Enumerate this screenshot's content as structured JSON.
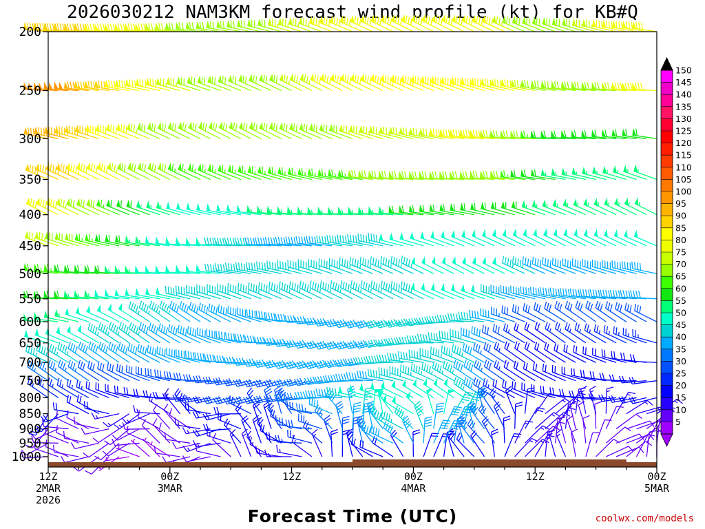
{
  "chart_data": {
    "type": "wind-barb-time-height",
    "title": "2026030212 NAM3KM forecast wind profile (kt) for KB#Q",
    "xlabel": "Forecast Time (UTC)",
    "ylabel": "",
    "credit": "coolwx.com/models",
    "y_axis": {
      "scale": "pressure (hPa), decreasing upward",
      "range": [
        1040,
        200
      ],
      "ticks": [
        "200",
        "250",
        "300",
        "350",
        "400",
        "450",
        "500",
        "550",
        "600",
        "650",
        "700",
        "750",
        "800",
        "850",
        "900",
        "950",
        "1000"
      ]
    },
    "x_axis": {
      "range_hours": [
        0,
        60
      ],
      "ticks": [
        {
          "hour": 0,
          "lines": [
            "12Z",
            "2MAR",
            "2026"
          ]
        },
        {
          "hour": 12,
          "lines": [
            "00Z",
            "3MAR"
          ]
        },
        {
          "hour": 24,
          "lines": [
            "12Z"
          ]
        },
        {
          "hour": 36,
          "lines": [
            "00Z",
            "4MAR"
          ]
        },
        {
          "hour": 48,
          "lines": [
            "12Z"
          ]
        },
        {
          "hour": 60,
          "lines": [
            "00Z",
            "5MAR"
          ]
        }
      ]
    },
    "colorbar": {
      "unit": "kt",
      "labels": [
        "150",
        "145",
        "140",
        "135",
        "130",
        "125",
        "120",
        "115",
        "110",
        "105",
        "100",
        "95",
        "90",
        "85",
        "80",
        "75",
        "70",
        "65",
        "60",
        "55",
        "50",
        "45",
        "40",
        "35",
        "30",
        "25",
        "20",
        "15",
        "10",
        "5"
      ],
      "colors": [
        "#ff00ff",
        "#f000c8",
        "#ff0096",
        "#ff1464",
        "#ff0032",
        "#ff0000",
        "#ff1e00",
        "#ff3c00",
        "#ff5a00",
        "#ff7800",
        "#ff9600",
        "#ffb400",
        "#ffd200",
        "#ffff00",
        "#f0ff00",
        "#c8ff00",
        "#96ff00",
        "#3cff00",
        "#14e614",
        "#00ff78",
        "#00ffc8",
        "#00d2d2",
        "#00aaff",
        "#0078ff",
        "#0050ff",
        "#0028ff",
        "#0000ff",
        "#2800ff",
        "#6400ff",
        "#a000ff"
      ]
    },
    "barb_time_step_hours": 1,
    "levels": [
      {
        "p": 1000,
        "speeds": [
          10,
          8,
          8,
          8,
          8,
          8,
          8,
          5,
          5,
          5,
          5,
          5,
          5,
          8,
          8,
          8,
          10,
          10,
          10,
          15,
          15,
          15,
          15,
          15,
          15,
          15,
          15,
          15,
          20,
          20,
          20,
          20,
          20,
          20,
          20,
          20,
          20,
          20,
          20,
          20,
          20,
          20,
          20,
          20,
          20,
          20,
          15,
          15,
          15,
          15,
          15,
          15,
          12,
          12,
          10,
          10,
          8,
          8,
          8,
          8,
          8
        ]
      },
      {
        "p": 950,
        "speeds": [
          10,
          10,
          10,
          10,
          10,
          10,
          8,
          8,
          8,
          8,
          8,
          8,
          8,
          10,
          10,
          10,
          15,
          15,
          15,
          18,
          18,
          18,
          20,
          22,
          22,
          25,
          25,
          25,
          25,
          30,
          32,
          35,
          35,
          38,
          40,
          40,
          40,
          40,
          38,
          38,
          35,
          35,
          35,
          30,
          25,
          20,
          15,
          15,
          12,
          12,
          12,
          12,
          10,
          10,
          10,
          10,
          10,
          10,
          10,
          10,
          10
        ]
      },
      {
        "p": 900,
        "speeds": [
          10,
          10,
          10,
          10,
          10,
          10,
          10,
          10,
          10,
          10,
          10,
          10,
          10,
          12,
          12,
          15,
          15,
          18,
          18,
          20,
          20,
          22,
          22,
          25,
          25,
          28,
          30,
          32,
          35,
          35,
          38,
          40,
          40,
          42,
          45,
          45,
          45,
          45,
          42,
          42,
          40,
          40,
          40,
          35,
          30,
          25,
          20,
          18,
          15,
          15,
          15,
          15,
          12,
          12,
          12,
          12,
          12,
          12,
          12,
          12,
          12
        ]
      },
      {
        "p": 850,
        "speeds": [
          20,
          20,
          20,
          20,
          20,
          18,
          18,
          15,
          15,
          15,
          15,
          15,
          15,
          15,
          18,
          18,
          20,
          20,
          22,
          22,
          25,
          25,
          28,
          30,
          30,
          32,
          32,
          35,
          38,
          40,
          42,
          45,
          48,
          50,
          50,
          50,
          50,
          50,
          48,
          48,
          45,
          45,
          40,
          35,
          30,
          25,
          20,
          18,
          15,
          15,
          15,
          15,
          15,
          15,
          15,
          15,
          15,
          15,
          15,
          15,
          15
        ]
      },
      {
        "p": 800,
        "speeds": [
          25,
          25,
          25,
          25,
          25,
          25,
          22,
          22,
          20,
          20,
          20,
          20,
          20,
          22,
          22,
          25,
          25,
          25,
          28,
          28,
          30,
          30,
          30,
          32,
          32,
          35,
          35,
          38,
          40,
          42,
          45,
          48,
          50,
          52,
          52,
          52,
          52,
          52,
          50,
          50,
          48,
          48,
          45,
          40,
          30,
          25,
          20,
          20,
          20,
          20,
          20,
          20,
          20,
          20,
          20,
          20,
          20,
          20,
          20,
          20,
          20
        ]
      },
      {
        "p": 750,
        "speeds": [
          35,
          35,
          35,
          35,
          35,
          32,
          32,
          30,
          30,
          30,
          30,
          30,
          30,
          30,
          30,
          30,
          30,
          30,
          30,
          32,
          32,
          32,
          32,
          32,
          32,
          35,
          35,
          35,
          38,
          38,
          40,
          40,
          42,
          42,
          45,
          45,
          45,
          45,
          45,
          45,
          45,
          45,
          42,
          40,
          35,
          30,
          25,
          22,
          20,
          20,
          20,
          20,
          20,
          20,
          20,
          20,
          20,
          20,
          20,
          20,
          20
        ]
      },
      {
        "p": 700,
        "speeds": [
          45,
          45,
          45,
          45,
          42,
          42,
          40,
          40,
          40,
          40,
          40,
          38,
          38,
          38,
          38,
          38,
          38,
          38,
          38,
          38,
          38,
          38,
          38,
          38,
          38,
          38,
          38,
          38,
          40,
          40,
          42,
          42,
          42,
          45,
          45,
          45,
          45,
          45,
          45,
          45,
          45,
          45,
          45,
          40,
          35,
          30,
          25,
          22,
          20,
          20,
          20,
          20,
          20,
          20,
          20,
          20,
          20,
          20,
          20,
          20,
          20
        ]
      },
      {
        "p": 650,
        "speeds": [
          50,
          50,
          50,
          50,
          48,
          48,
          45,
          45,
          45,
          45,
          45,
          42,
          42,
          42,
          42,
          42,
          40,
          40,
          40,
          40,
          40,
          40,
          40,
          40,
          40,
          40,
          40,
          40,
          40,
          40,
          42,
          42,
          42,
          42,
          45,
          45,
          45,
          45,
          45,
          45,
          45,
          45,
          45,
          42,
          38,
          32,
          28,
          25,
          22,
          22,
          22,
          25,
          25,
          25,
          25,
          25,
          25,
          25,
          25,
          25,
          25
        ]
      },
      {
        "p": 600,
        "speeds": [
          55,
          55,
          55,
          55,
          52,
          52,
          50,
          50,
          48,
          48,
          45,
          45,
          45,
          45,
          42,
          42,
          42,
          42,
          42,
          42,
          42,
          42,
          42,
          42,
          42,
          42,
          42,
          42,
          42,
          42,
          42,
          42,
          42,
          42,
          45,
          45,
          45,
          45,
          45,
          45,
          45,
          45,
          45,
          45,
          42,
          38,
          35,
          32,
          30,
          30,
          30,
          30,
          30,
          30,
          32,
          32,
          32,
          32,
          32,
          32,
          32
        ]
      },
      {
        "p": 550,
        "speeds": [
          60,
          60,
          60,
          58,
          55,
          55,
          55,
          52,
          50,
          50,
          50,
          48,
          48,
          48,
          45,
          45,
          45,
          45,
          45,
          45,
          45,
          45,
          45,
          45,
          45,
          45,
          45,
          45,
          45,
          45,
          45,
          45,
          45,
          45,
          45,
          45,
          45,
          45,
          48,
          48,
          48,
          48,
          48,
          48,
          48,
          45,
          42,
          40,
          38,
          38,
          38,
          38,
          38,
          38,
          38,
          38,
          38,
          38,
          38,
          38,
          38
        ]
      },
      {
        "p": 500,
        "speeds": [
          65,
          65,
          65,
          62,
          60,
          60,
          58,
          58,
          55,
          55,
          55,
          52,
          52,
          50,
          50,
          48,
          48,
          48,
          45,
          45,
          45,
          45,
          45,
          45,
          45,
          45,
          45,
          45,
          45,
          45,
          45,
          45,
          45,
          45,
          45,
          45,
          45,
          45,
          48,
          48,
          48,
          48,
          50,
          50,
          50,
          50,
          48,
          45,
          45,
          42,
          42,
          42,
          42,
          42,
          42,
          42,
          42,
          42,
          42,
          42,
          42
        ]
      },
      {
        "p": 450,
        "speeds": [
          75,
          75,
          72,
          70,
          68,
          65,
          65,
          62,
          60,
          58,
          55,
          55,
          52,
          52,
          50,
          50,
          48,
          48,
          45,
          45,
          45,
          45,
          42,
          42,
          42,
          42,
          42,
          42,
          42,
          45,
          45,
          45,
          45,
          45,
          45,
          48,
          48,
          48,
          48,
          50,
          50,
          50,
          50,
          50,
          52,
          52,
          50,
          50,
          48,
          48,
          48,
          48,
          48,
          48,
          48,
          48,
          48,
          48,
          48,
          48,
          48
        ]
      },
      {
        "p": 400,
        "speeds": [
          80,
          80,
          78,
          75,
          72,
          70,
          68,
          65,
          62,
          60,
          58,
          55,
          55,
          55,
          52,
          52,
          52,
          50,
          50,
          52,
          52,
          52,
          55,
          55,
          55,
          55,
          55,
          55,
          55,
          55,
          55,
          55,
          55,
          55,
          55,
          55,
          58,
          58,
          58,
          60,
          60,
          60,
          62,
          62,
          62,
          62,
          60,
          60,
          58,
          55,
          55,
          55,
          55,
          55,
          55,
          55,
          55,
          55,
          55,
          55,
          55
        ]
      },
      {
        "p": 350,
        "speeds": [
          90,
          90,
          88,
          88,
          85,
          82,
          80,
          78,
          75,
          72,
          70,
          68,
          68,
          68,
          65,
          65,
          65,
          65,
          65,
          65,
          65,
          65,
          65,
          65,
          65,
          65,
          65,
          65,
          65,
          65,
          65,
          65,
          68,
          68,
          68,
          70,
          70,
          70,
          70,
          72,
          72,
          72,
          72,
          72,
          72,
          70,
          68,
          65,
          62,
          60,
          58,
          55,
          55,
          55,
          55,
          55,
          55,
          55,
          55,
          55,
          55
        ]
      },
      {
        "p": 300,
        "speeds": [
          95,
          95,
          95,
          92,
          90,
          88,
          85,
          82,
          80,
          78,
          75,
          72,
          70,
          70,
          68,
          68,
          68,
          68,
          68,
          68,
          70,
          70,
          72,
          72,
          72,
          72,
          72,
          72,
          72,
          72,
          72,
          75,
          75,
          75,
          75,
          75,
          75,
          75,
          75,
          75,
          78,
          78,
          78,
          78,
          78,
          75,
          72,
          70,
          68,
          65,
          62,
          62,
          62,
          62,
          62,
          62,
          62,
          62,
          62,
          62,
          62
        ]
      },
      {
        "p": 250,
        "speeds": [
          100,
          100,
          98,
          98,
          95,
          92,
          90,
          88,
          85,
          82,
          80,
          78,
          78,
          75,
          75,
          72,
          72,
          70,
          70,
          70,
          70,
          70,
          72,
          72,
          72,
          75,
          75,
          75,
          78,
          78,
          80,
          80,
          82,
          82,
          85,
          85,
          85,
          85,
          85,
          85,
          85,
          85,
          85,
          85,
          85,
          82,
          80,
          78,
          75,
          72,
          70,
          68,
          68,
          68,
          68,
          70,
          72,
          75,
          78,
          80,
          82
        ]
      },
      {
        "p": 200,
        "speeds": [
          92,
          92,
          92,
          90,
          88,
          88,
          85,
          85,
          82,
          80,
          78,
          78,
          75,
          75,
          72,
          72,
          70,
          70,
          70,
          70,
          70,
          70,
          72,
          72,
          75,
          75,
          75,
          75,
          78,
          78,
          80,
          80,
          82,
          82,
          82,
          82,
          82,
          82,
          82,
          82,
          82,
          82,
          82,
          82,
          80,
          78,
          75,
          72,
          70,
          70,
          70,
          70,
          72,
          72,
          75,
          75,
          78,
          78,
          80,
          80,
          80
        ]
      }
    ],
    "terrain": "surface elevation band shown in brown along the bottom of the plot",
    "legend": "vertical colorbar at right"
  }
}
